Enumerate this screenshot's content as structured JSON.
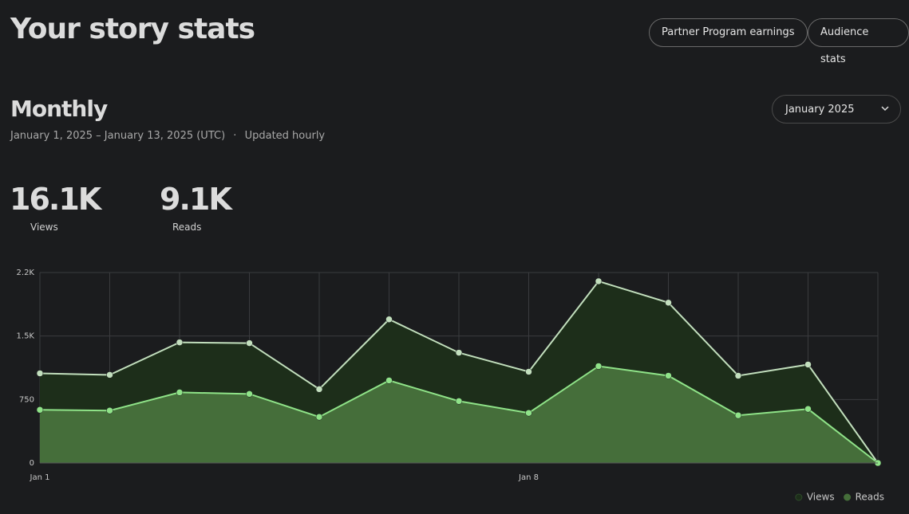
{
  "header": {
    "title": "Your story stats",
    "buttons": [
      "Partner Program earnings",
      "Audience stats"
    ]
  },
  "section": {
    "title": "Monthly",
    "date_range": "January 1, 2025 – January 13, 2025 (UTC)",
    "separator": "·",
    "update_note": "Updated hourly",
    "dropdown": "January 2025"
  },
  "stats": [
    {
      "value": "16.1K",
      "label": "Views"
    },
    {
      "value": "9.1K",
      "label": "Reads"
    }
  ],
  "chart_data": {
    "type": "area",
    "categories": [
      "Jan 1",
      null,
      null,
      null,
      null,
      null,
      null,
      "Jan 8",
      null,
      null,
      null,
      null,
      null
    ],
    "series": [
      {
        "name": "Views",
        "color": "#c2dfbd",
        "fill": "#1d2e1a",
        "values": [
          1059,
          1041,
          1425,
          1416,
          872,
          1697,
          1303,
          1078,
          2147,
          1894,
          1031,
          1163,
          0
        ]
      },
      {
        "name": "Reads",
        "color": "#8fe388",
        "fill": "#456e3a",
        "values": [
          628,
          619,
          834,
          816,
          544,
          975,
          731,
          591,
          1144,
          1031,
          563,
          638,
          0
        ]
      }
    ],
    "ylim": [
      0,
      2250
    ],
    "yticks": [
      0,
      750,
      {
        "value": 1500,
        "label": "1.5K"
      },
      {
        "value": 2250,
        "label": "2.2K"
      }
    ],
    "grid": true,
    "legend": "bottom-right"
  }
}
